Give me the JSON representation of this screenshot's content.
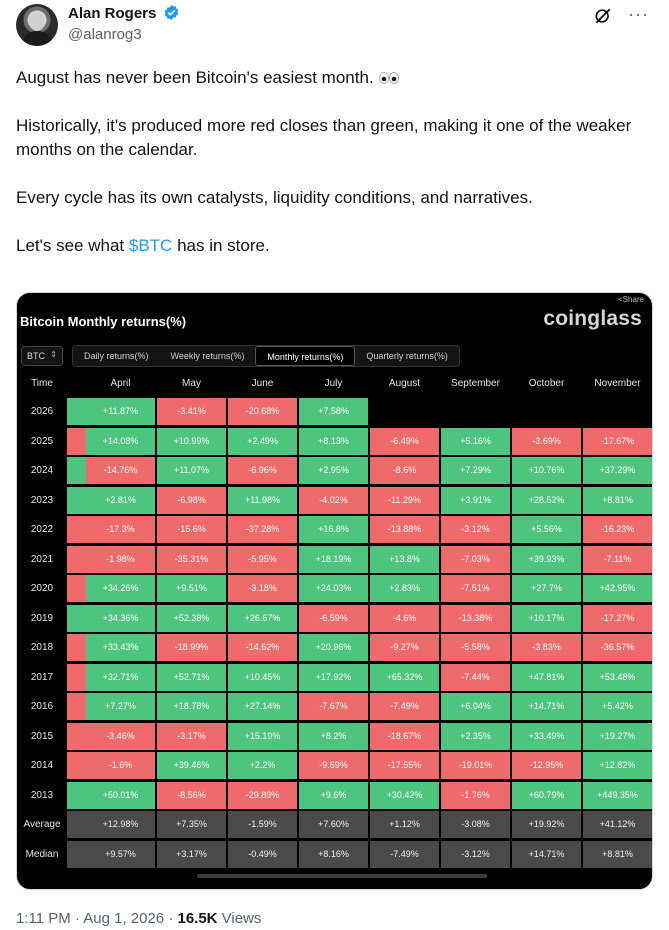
{
  "author": {
    "name": "Alan Rogers",
    "handle": "@alanrog3"
  },
  "tweet": {
    "p1": "August has never been Bitcoin's easiest month.",
    "p2": "Historically, it's produced more red closes than green, making it one of the weaker months on the calendar.",
    "p3": "Every cycle has its own catalysts, liquidity conditions, and narratives.",
    "p4_pre": "Let's see what ",
    "p4_tag": "$BTC",
    "p4_post": " has in store."
  },
  "card": {
    "share": "Share",
    "title": "Bitcoin Monthly returns(%)",
    "brand": "coinglass",
    "coin": "BTC",
    "tabs": [
      "Daily returns(%)",
      "Weekly returns(%)",
      "Monthly returns(%)",
      "Quarterly returns(%)"
    ],
    "active_tab": 2,
    "time_label": "Time",
    "months": [
      "April",
      "May",
      "June",
      "July",
      "August",
      "September",
      "October",
      "November"
    ],
    "rows": [
      {
        "label": "2026",
        "stub": "green",
        "cells": [
          "+11.87%",
          "-3.41%",
          "-20.68%",
          "+7.58%",
          "",
          "",
          "",
          ""
        ]
      },
      {
        "label": "2025",
        "stub": "red",
        "cells": [
          "+14.08%",
          "+10.99%",
          "+2.49%",
          "+8.13%",
          "-6.49%",
          "+5.16%",
          "-3.69%",
          "-17.67%"
        ]
      },
      {
        "label": "2024",
        "stub": "green",
        "cells": [
          "-14.76%",
          "+11.07%",
          "-6.96%",
          "+2.95%",
          "-8.6%",
          "+7.29%",
          "+10.76%",
          "+37.29%"
        ]
      },
      {
        "label": "2023",
        "stub": "green",
        "cells": [
          "+2.81%",
          "-6.98%",
          "+11.98%",
          "-4.02%",
          "-11.29%",
          "+3.91%",
          "+28.52%",
          "+8.81%"
        ]
      },
      {
        "label": "2022",
        "stub": "red",
        "cells": [
          "-17.3%",
          "-15.6%",
          "-37.28%",
          "+16.8%",
          "-13.88%",
          "-3.12%",
          "+5.56%",
          "-16.23%"
        ]
      },
      {
        "label": "2021",
        "stub": "red",
        "cells": [
          "-1.98%",
          "-35.31%",
          "-5.95%",
          "+18.19%",
          "+13.8%",
          "-7.03%",
          "+39.93%",
          "-7.11%"
        ]
      },
      {
        "label": "2020",
        "stub": "red",
        "cells": [
          "+34.26%",
          "+9.51%",
          "-3.18%",
          "+24.03%",
          "+2.83%",
          "-7.51%",
          "+27.7%",
          "+42.95%"
        ]
      },
      {
        "label": "2019",
        "stub": "green",
        "cells": [
          "+34.36%",
          "+52.38%",
          "+26.67%",
          "-6.59%",
          "-4.6%",
          "-13.38%",
          "+10.17%",
          "-17.27%"
        ]
      },
      {
        "label": "2018",
        "stub": "red",
        "cells": [
          "+33.43%",
          "-18.99%",
          "-14.62%",
          "+20.96%",
          "-9.27%",
          "-5.58%",
          "-3.83%",
          "-36.57%"
        ]
      },
      {
        "label": "2017",
        "stub": "red",
        "cells": [
          "+32.71%",
          "+52.71%",
          "+10.45%",
          "+17.92%",
          "+65.32%",
          "-7.44%",
          "+47.81%",
          "+53.48%"
        ]
      },
      {
        "label": "2016",
        "stub": "red",
        "cells": [
          "+7.27%",
          "+18.78%",
          "+27.14%",
          "-7.67%",
          "-7.49%",
          "+6.04%",
          "+14.71%",
          "+5.42%"
        ]
      },
      {
        "label": "2015",
        "stub": "red",
        "cells": [
          "-3.46%",
          "-3.17%",
          "+15.19%",
          "+8.2%",
          "-18.67%",
          "+2.35%",
          "+33.49%",
          "+19.27%"
        ]
      },
      {
        "label": "2014",
        "stub": "red",
        "cells": [
          "-1.6%",
          "+39.46%",
          "+2.2%",
          "-9.69%",
          "-17.55%",
          "-19.01%",
          "-12.95%",
          "+12.82%"
        ]
      },
      {
        "label": "2013",
        "stub": "green",
        "cells": [
          "+50.01%",
          "-8.56%",
          "-29.89%",
          "+9.6%",
          "+30.42%",
          "-1.76%",
          "+60.79%",
          "+449.35%"
        ]
      },
      {
        "label": "Average",
        "stub": "gray",
        "cells": [
          "+12.98%",
          "+7.35%",
          "-1.59%",
          "+7.60%",
          "+1.12%",
          "-3.08%",
          "+19.92%",
          "+41.12%"
        ]
      },
      {
        "label": "Median",
        "stub": "gray",
        "cells": [
          "+9.57%",
          "+3.17%",
          "-0.49%",
          "+8.16%",
          "-7.49%",
          "-3.12%",
          "+14.71%",
          "+8.81%"
        ]
      }
    ]
  },
  "footer": {
    "time": "1:11 PM · Aug 1, 2026 · ",
    "views_count": "16.5K",
    "views_label": " Views"
  },
  "colors": {
    "green": "#4ec57e",
    "red": "#ef6b6b",
    "gray": "#4a4a4a",
    "link": "#1d9bf0"
  },
  "icons": [
    "verified-badge-icon",
    "grok-icon",
    "more-icon",
    "eyes-emoji-icon",
    "share-icon",
    "dropdown-icon"
  ]
}
